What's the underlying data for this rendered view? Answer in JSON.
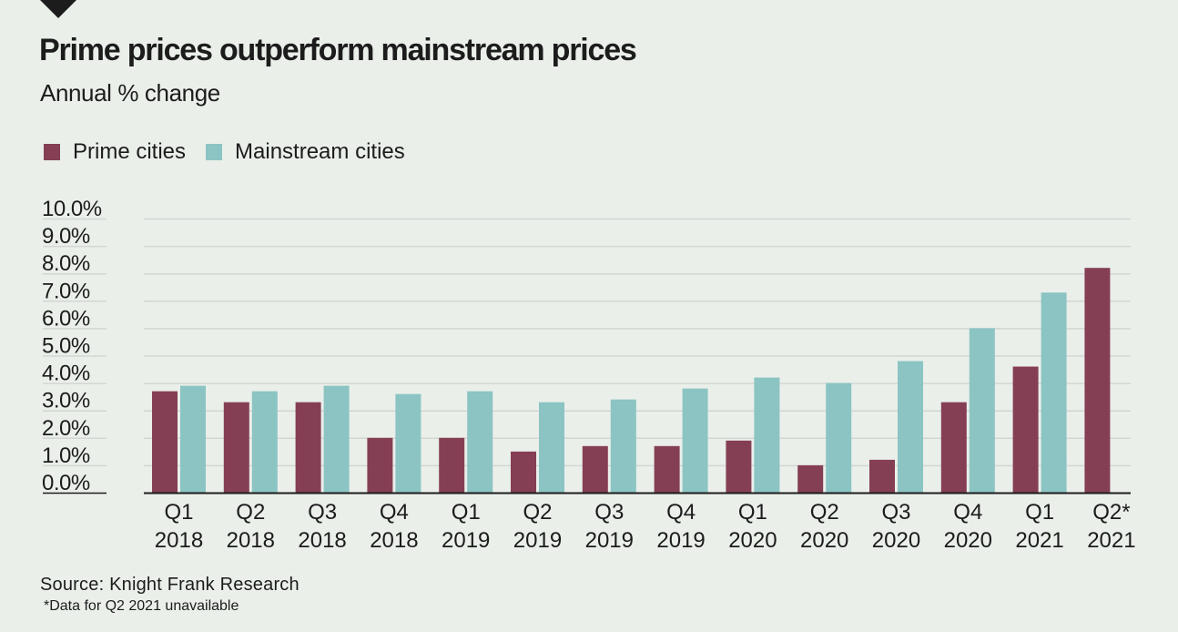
{
  "header": {
    "title": "Prime prices outperform mainstream prices",
    "subtitle": "Annual % change"
  },
  "legend": [
    {
      "label": "Prime cities",
      "color": "#853f54"
    },
    {
      "label": "Mainstream cities",
      "color": "#8bc4c3"
    }
  ],
  "footer": {
    "source": "Source: Knight Frank Research",
    "note": "*Data for Q2 2021 unavailable"
  },
  "chart_data": {
    "type": "bar",
    "title": "Prime prices outperform mainstream prices",
    "subtitle": "Annual % change",
    "xlabel": "",
    "ylabel": "",
    "ylim": [
      0,
      10
    ],
    "yticks": [
      "0.0%",
      "1.0%",
      "2.0%",
      "3.0%",
      "4.0%",
      "5.0%",
      "6.0%",
      "7.0%",
      "8.0%",
      "9.0%",
      "10.0%"
    ],
    "grid": true,
    "legend_position": "top-left",
    "categories": [
      [
        "Q1",
        "2018"
      ],
      [
        "Q2",
        "2018"
      ],
      [
        "Q3",
        "2018"
      ],
      [
        "Q4",
        "2018"
      ],
      [
        "Q1",
        "2019"
      ],
      [
        "Q2",
        "2019"
      ],
      [
        "Q3",
        "2019"
      ],
      [
        "Q4",
        "2019"
      ],
      [
        "Q1",
        "2020"
      ],
      [
        "Q2",
        "2020"
      ],
      [
        "Q3",
        "2020"
      ],
      [
        "Q4",
        "2020"
      ],
      [
        "Q1",
        "2021"
      ],
      [
        "Q2*",
        "2021"
      ]
    ],
    "series": [
      {
        "name": "Prime cities",
        "color": "#853f54",
        "values": [
          3.7,
          3.3,
          3.3,
          2.0,
          2.0,
          1.5,
          1.7,
          1.7,
          1.9,
          1.0,
          1.2,
          3.3,
          4.6,
          8.2
        ]
      },
      {
        "name": "Mainstream cities",
        "color": "#8bc4c3",
        "values": [
          3.9,
          3.7,
          3.9,
          3.6,
          3.7,
          3.3,
          3.4,
          3.8,
          4.2,
          4.0,
          4.8,
          6.0,
          7.3,
          null
        ]
      }
    ]
  }
}
